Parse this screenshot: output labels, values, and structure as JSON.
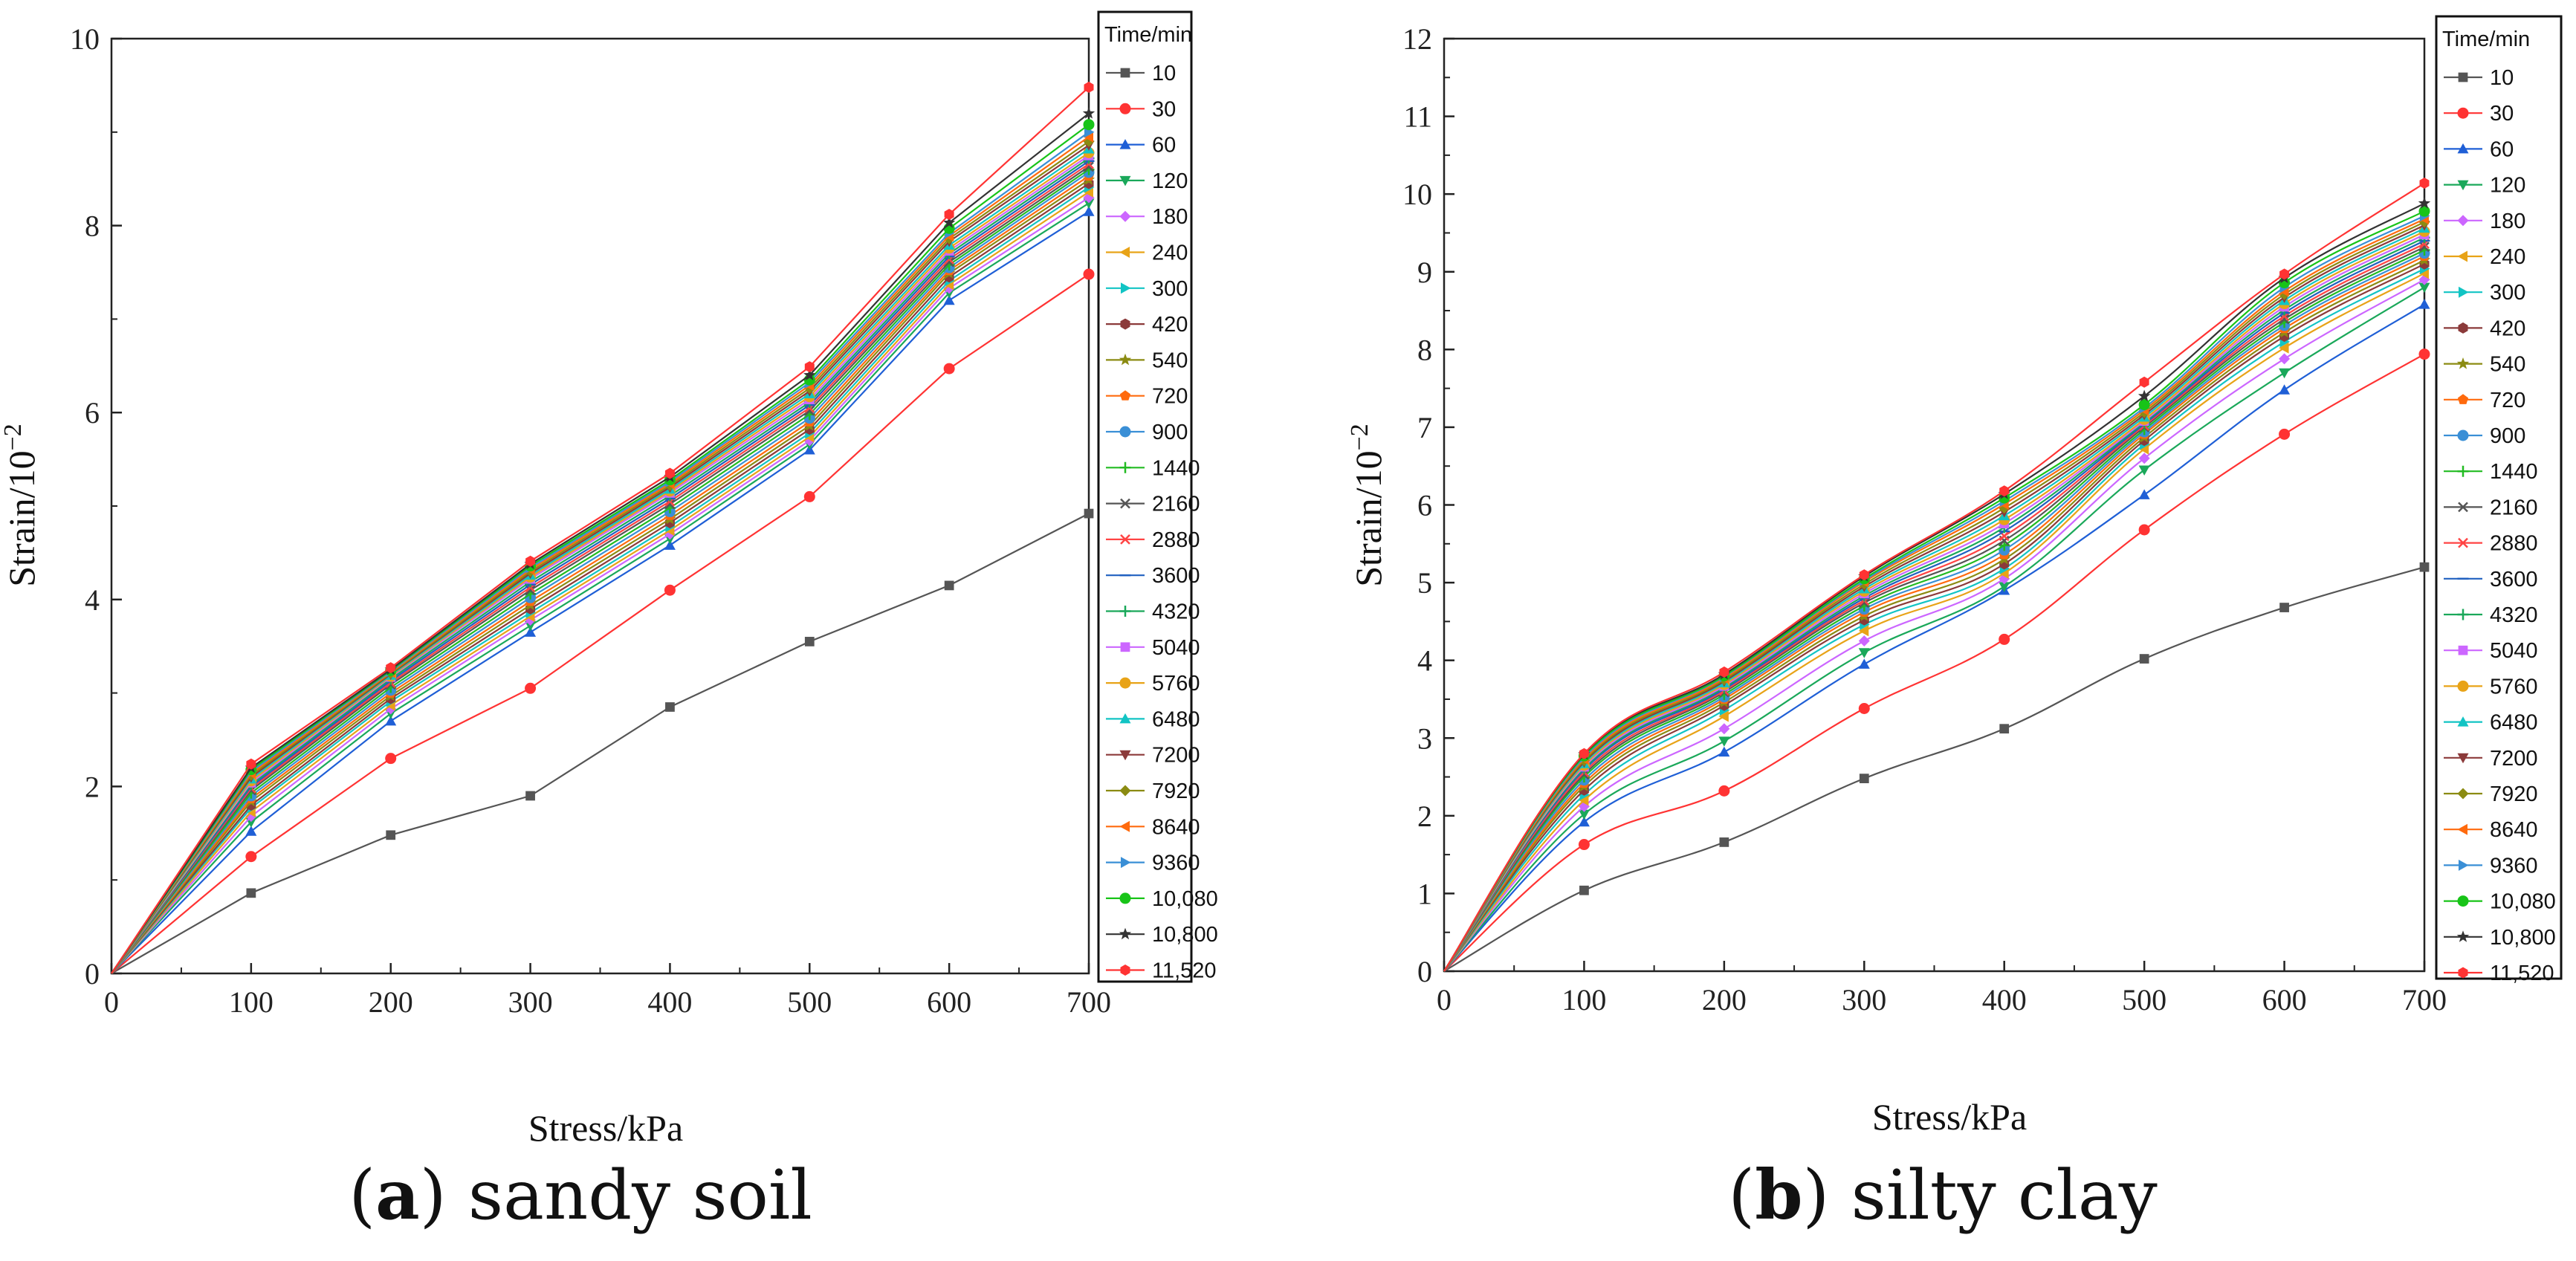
{
  "chart_data": [
    {
      "type": "line",
      "caption_letter": "a",
      "caption_text": "sandy soil",
      "xlabel": "Stress/kPa",
      "ylabel_base": "Strain/10",
      "ylabel_exp": "−2",
      "xlim": [
        0,
        700
      ],
      "ylim": [
        0,
        10
      ],
      "xticks": [
        "0",
        "100",
        "200",
        "300",
        "400",
        "500",
        "600",
        "700"
      ],
      "yticks": [
        "0",
        "2",
        "4",
        "6",
        "8",
        "10"
      ],
      "legend_title": "Time/min",
      "x": [
        0,
        100,
        200,
        300,
        400,
        500,
        600,
        700
      ],
      "series": [
        {
          "name": "10",
          "color": "#555555",
          "marker": "square",
          "values": [
            0,
            0.86,
            1.48,
            1.9,
            2.85,
            3.55,
            4.15,
            4.92
          ]
        },
        {
          "name": "30",
          "color": "#ff3333",
          "marker": "circle",
          "values": [
            0,
            1.25,
            2.3,
            3.05,
            4.1,
            5.1,
            6.47,
            7.48
          ]
        },
        {
          "name": "60",
          "color": "#1f5fd6",
          "marker": "triangle-up",
          "values": [
            0,
            1.52,
            2.7,
            3.65,
            4.58,
            5.6,
            7.2,
            8.15
          ]
        },
        {
          "name": "120",
          "color": "#1aa85a",
          "marker": "triangle-down",
          "values": [
            0,
            1.62,
            2.78,
            3.72,
            4.65,
            5.66,
            7.28,
            8.24
          ]
        },
        {
          "name": "180",
          "color": "#cc66ff",
          "marker": "diamond",
          "values": [
            0,
            1.68,
            2.83,
            3.78,
            4.7,
            5.7,
            7.33,
            8.3
          ]
        },
        {
          "name": "240",
          "color": "#e8a317",
          "marker": "triangle-left",
          "values": [
            0,
            1.73,
            2.87,
            3.82,
            4.74,
            5.74,
            7.37,
            8.36
          ]
        },
        {
          "name": "300",
          "color": "#12c4c4",
          "marker": "triangle-right",
          "values": [
            0,
            1.77,
            2.91,
            3.86,
            4.78,
            5.78,
            7.41,
            8.41
          ]
        },
        {
          "name": "420",
          "color": "#8b3a3a",
          "marker": "hexagon",
          "values": [
            0,
            1.8,
            2.94,
            3.9,
            4.82,
            5.82,
            7.45,
            8.45
          ]
        },
        {
          "name": "540",
          "color": "#8b8b12",
          "marker": "star",
          "values": [
            0,
            1.84,
            2.97,
            3.94,
            4.86,
            5.86,
            7.49,
            8.49
          ]
        },
        {
          "name": "720",
          "color": "#ff6a0d",
          "marker": "pentagon",
          "values": [
            0,
            1.87,
            3.0,
            3.98,
            4.9,
            5.9,
            7.52,
            8.53
          ]
        },
        {
          "name": "900",
          "color": "#3a8fd6",
          "marker": "half-circle",
          "values": [
            0,
            1.9,
            3.03,
            4.02,
            4.94,
            5.94,
            7.55,
            8.57
          ]
        },
        {
          "name": "1440",
          "color": "#22bb22",
          "marker": "plus",
          "values": [
            0,
            1.93,
            3.06,
            4.06,
            4.98,
            5.98,
            7.58,
            8.6
          ]
        },
        {
          "name": "2160",
          "color": "#555555",
          "marker": "x",
          "values": [
            0,
            1.96,
            3.09,
            4.1,
            5.02,
            6.02,
            7.61,
            8.63
          ]
        },
        {
          "name": "2880",
          "color": "#ff4444",
          "marker": "x",
          "values": [
            0,
            1.98,
            3.11,
            4.13,
            5.05,
            6.05,
            7.64,
            8.66
          ]
        },
        {
          "name": "3600",
          "color": "#2060c0",
          "marker": "dash",
          "values": [
            0,
            2.0,
            3.13,
            4.16,
            5.08,
            6.08,
            7.67,
            8.69
          ]
        },
        {
          "name": "4320",
          "color": "#1aa85a",
          "marker": "plus",
          "values": [
            0,
            2.02,
            3.15,
            4.19,
            5.11,
            6.11,
            7.7,
            8.72
          ]
        },
        {
          "name": "5040",
          "color": "#cc66ff",
          "marker": "square",
          "values": [
            0,
            2.04,
            3.17,
            4.22,
            5.14,
            6.14,
            7.73,
            8.75
          ]
        },
        {
          "name": "5760",
          "color": "#e8a317",
          "marker": "circle",
          "values": [
            0,
            2.06,
            3.18,
            4.24,
            5.16,
            6.17,
            7.76,
            8.78
          ]
        },
        {
          "name": "6480",
          "color": "#12c4c4",
          "marker": "triangle-up",
          "values": [
            0,
            2.08,
            3.19,
            4.26,
            5.18,
            6.2,
            7.79,
            8.82
          ]
        },
        {
          "name": "7200",
          "color": "#8b3a3a",
          "marker": "triangle-down",
          "values": [
            0,
            2.1,
            3.2,
            4.28,
            5.2,
            6.23,
            7.83,
            8.86
          ]
        },
        {
          "name": "7920",
          "color": "#8b8b12",
          "marker": "diamond",
          "values": [
            0,
            2.12,
            3.21,
            4.3,
            5.22,
            6.26,
            7.86,
            8.9
          ]
        },
        {
          "name": "8640",
          "color": "#ff6a0d",
          "marker": "triangle-left",
          "values": [
            0,
            2.14,
            3.22,
            4.32,
            5.24,
            6.29,
            7.89,
            8.95
          ]
        },
        {
          "name": "9360",
          "color": "#3a8fd6",
          "marker": "triangle-right",
          "values": [
            0,
            2.16,
            3.23,
            4.34,
            5.26,
            6.32,
            7.92,
            9.0
          ]
        },
        {
          "name": "10,080",
          "color": "#18c418",
          "marker": "circle",
          "values": [
            0,
            2.18,
            3.24,
            4.36,
            5.28,
            6.35,
            7.97,
            9.08
          ]
        },
        {
          "name": "10,800",
          "color": "#333333",
          "marker": "star",
          "values": [
            0,
            2.2,
            3.25,
            4.38,
            5.31,
            6.4,
            8.03,
            9.2
          ]
        },
        {
          "name": "11,520",
          "color": "#ff3333",
          "marker": "hexagon",
          "values": [
            0,
            2.24,
            3.27,
            4.41,
            5.35,
            6.49,
            8.12,
            9.48
          ]
        }
      ]
    },
    {
      "type": "line",
      "caption_letter": "b",
      "caption_text": "silty clay",
      "xlabel": "Stress/kPa",
      "ylabel_base": "Strain/10",
      "ylabel_exp": "−2",
      "xlim": [
        0,
        700
      ],
      "ylim": [
        0,
        12
      ],
      "xticks": [
        "0",
        "100",
        "200",
        "300",
        "400",
        "500",
        "600",
        "700"
      ],
      "yticks": [
        "0",
        "1",
        "2",
        "3",
        "4",
        "5",
        "6",
        "7",
        "8",
        "9",
        "10",
        "11",
        "12"
      ],
      "legend_title": "Time/min",
      "x": [
        0,
        100,
        200,
        300,
        400,
        500,
        600,
        700
      ],
      "series": [
        {
          "name": "10",
          "color": "#555555",
          "marker": "square",
          "values": [
            0,
            1.04,
            1.66,
            2.48,
            3.12,
            4.02,
            4.68,
            5.2
          ]
        },
        {
          "name": "30",
          "color": "#ff3333",
          "marker": "circle",
          "values": [
            0,
            1.63,
            2.32,
            3.38,
            4.27,
            5.68,
            6.91,
            7.94
          ]
        },
        {
          "name": "60",
          "color": "#1f5fd6",
          "marker": "triangle-up",
          "values": [
            0,
            1.92,
            2.82,
            3.95,
            4.9,
            6.13,
            7.48,
            8.58
          ]
        },
        {
          "name": "120",
          "color": "#1aa85a",
          "marker": "triangle-down",
          "values": [
            0,
            2.02,
            2.96,
            4.1,
            4.95,
            6.45,
            7.7,
            8.8
          ]
        },
        {
          "name": "180",
          "color": "#cc66ff",
          "marker": "diamond",
          "values": [
            0,
            2.12,
            3.12,
            4.25,
            5.05,
            6.6,
            7.88,
            8.9
          ]
        },
        {
          "name": "240",
          "color": "#e8a317",
          "marker": "triangle-left",
          "values": [
            0,
            2.2,
            3.28,
            4.38,
            5.12,
            6.72,
            8.02,
            8.98
          ]
        },
        {
          "name": "300",
          "color": "#12c4c4",
          "marker": "triangle-right",
          "values": [
            0,
            2.27,
            3.36,
            4.46,
            5.18,
            6.78,
            8.1,
            9.04
          ]
        },
        {
          "name": "420",
          "color": "#8b3a3a",
          "marker": "hexagon",
          "values": [
            0,
            2.33,
            3.42,
            4.52,
            5.24,
            6.83,
            8.17,
            9.1
          ]
        },
        {
          "name": "540",
          "color": "#8b8b12",
          "marker": "star",
          "values": [
            0,
            2.38,
            3.46,
            4.57,
            5.3,
            6.87,
            8.22,
            9.15
          ]
        },
        {
          "name": "720",
          "color": "#ff6a0d",
          "marker": "pentagon",
          "values": [
            0,
            2.42,
            3.5,
            4.62,
            5.36,
            6.91,
            8.27,
            9.2
          ]
        },
        {
          "name": "900",
          "color": "#3a8fd6",
          "marker": "half-circle",
          "values": [
            0,
            2.46,
            3.53,
            4.66,
            5.42,
            6.94,
            8.31,
            9.24
          ]
        },
        {
          "name": "1440",
          "color": "#22bb22",
          "marker": "plus",
          "values": [
            0,
            2.5,
            3.56,
            4.7,
            5.48,
            6.97,
            8.35,
            9.28
          ]
        },
        {
          "name": "2160",
          "color": "#555555",
          "marker": "x",
          "values": [
            0,
            2.53,
            3.59,
            4.74,
            5.54,
            7.0,
            8.39,
            9.32
          ]
        },
        {
          "name": "2880",
          "color": "#ff4444",
          "marker": "x",
          "values": [
            0,
            2.56,
            3.61,
            4.77,
            5.6,
            7.02,
            8.43,
            9.36
          ]
        },
        {
          "name": "3600",
          "color": "#2060c0",
          "marker": "dash",
          "values": [
            0,
            2.59,
            3.63,
            4.8,
            5.66,
            7.04,
            8.47,
            9.4
          ]
        },
        {
          "name": "4320",
          "color": "#1aa85a",
          "marker": "plus",
          "values": [
            0,
            2.61,
            3.65,
            4.83,
            5.71,
            7.06,
            8.51,
            9.44
          ]
        },
        {
          "name": "5040",
          "color": "#cc66ff",
          "marker": "square",
          "values": [
            0,
            2.63,
            3.67,
            4.86,
            5.76,
            7.08,
            8.55,
            9.48
          ]
        },
        {
          "name": "5760",
          "color": "#e8a317",
          "marker": "circle",
          "values": [
            0,
            2.65,
            3.69,
            4.89,
            5.81,
            7.1,
            8.59,
            9.52
          ]
        },
        {
          "name": "6480",
          "color": "#12c4c4",
          "marker": "triangle-up",
          "values": [
            0,
            2.67,
            3.71,
            4.92,
            5.86,
            7.13,
            8.63,
            9.56
          ]
        },
        {
          "name": "7200",
          "color": "#8b3a3a",
          "marker": "triangle-down",
          "values": [
            0,
            2.69,
            3.73,
            4.95,
            5.91,
            7.16,
            8.67,
            9.6
          ]
        },
        {
          "name": "7920",
          "color": "#8b8b12",
          "marker": "diamond",
          "values": [
            0,
            2.71,
            3.75,
            4.98,
            5.96,
            7.19,
            8.71,
            9.64
          ]
        },
        {
          "name": "8640",
          "color": "#ff6a0d",
          "marker": "triangle-left",
          "values": [
            0,
            2.73,
            3.77,
            5.01,
            6.01,
            7.22,
            8.75,
            9.68
          ]
        },
        {
          "name": "9360",
          "color": "#3a8fd6",
          "marker": "triangle-right",
          "values": [
            0,
            2.75,
            3.79,
            5.03,
            6.05,
            7.25,
            8.8,
            9.72
          ]
        },
        {
          "name": "10,080",
          "color": "#18c418",
          "marker": "circle",
          "values": [
            0,
            2.77,
            3.8,
            5.05,
            6.09,
            7.29,
            8.86,
            9.78
          ]
        },
        {
          "name": "10,800",
          "color": "#333333",
          "marker": "star",
          "values": [
            0,
            2.79,
            3.82,
            5.08,
            6.14,
            7.4,
            8.92,
            9.88
          ]
        },
        {
          "name": "11,520",
          "color": "#ff3333",
          "marker": "hexagon",
          "values": [
            0,
            2.8,
            3.85,
            5.1,
            6.18,
            7.58,
            8.97,
            10.14
          ]
        }
      ]
    }
  ]
}
